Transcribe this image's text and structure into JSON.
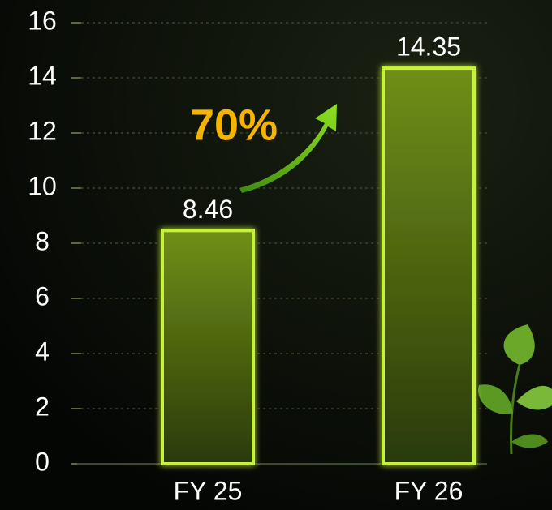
{
  "chart_data": {
    "type": "bar",
    "categories": [
      "FY 25",
      "FY 26"
    ],
    "values": [
      8.46,
      14.35
    ],
    "color": "#c6f23a",
    "ylim": [
      0,
      16
    ],
    "yticks": [
      0,
      2,
      4,
      6,
      8,
      10,
      12,
      14,
      16
    ],
    "grid": true,
    "annotation": "70%"
  }
}
